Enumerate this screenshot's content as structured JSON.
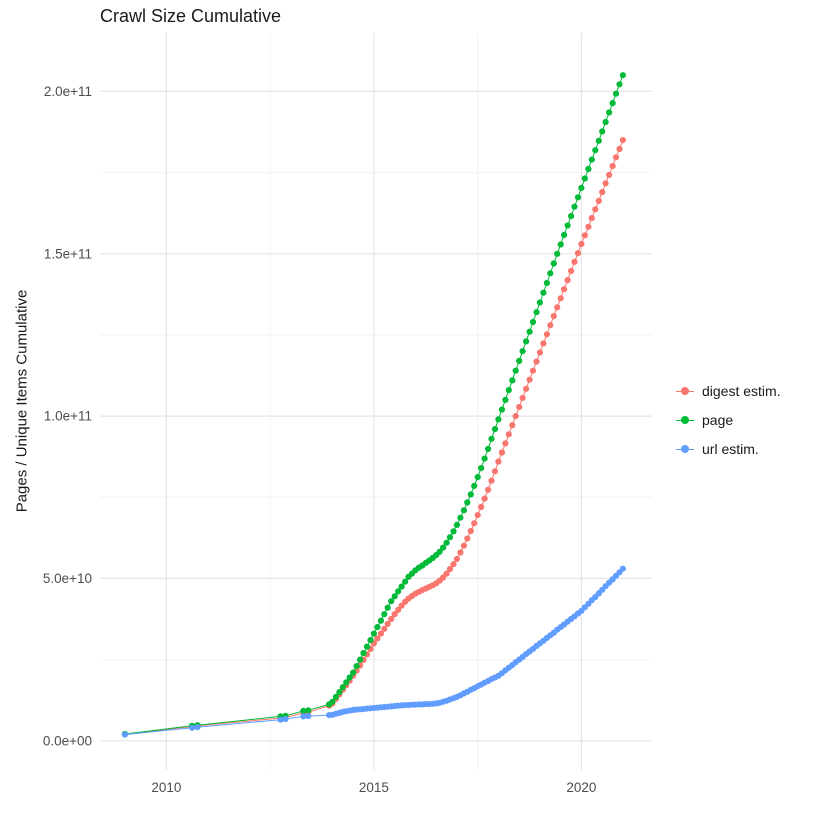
{
  "chart_data": {
    "type": "scatter",
    "title": "Crawl Size Cumulative",
    "xlabel": "",
    "ylabel": "Pages / Unique Items Cumulative",
    "xlim": [
      2008.4,
      2021.7
    ],
    "ylim_e9": [
      -9,
      218
    ],
    "grid": true,
    "legend_position": "right",
    "x_ticks": {
      "values": [
        2010,
        2015,
        2020
      ],
      "labels": [
        "2010",
        "2015",
        "2020"
      ]
    },
    "y_ticks": {
      "values_e9": [
        0,
        50,
        100,
        150,
        200
      ],
      "labels": [
        "0.0e+00",
        "5.0e+10",
        "1.0e+11",
        "1.5e+11",
        "2.0e+11"
      ]
    },
    "x_minor_ticks": [
      2012.5,
      2017.5
    ],
    "y_minor_ticks_e9": [
      25,
      75,
      125,
      175
    ],
    "y_unit": "items (values stored in units of 1e9)",
    "x": [
      2009.0,
      2010.62,
      2010.75,
      2012.75,
      2012.87,
      2013.3,
      2013.42,
      2013.92,
      2014.0,
      2014.083,
      2014.167,
      2014.25,
      2014.333,
      2014.417,
      2014.5,
      2014.583,
      2014.667,
      2014.75,
      2014.833,
      2014.917,
      2015.0,
      2015.083,
      2015.167,
      2015.25,
      2015.333,
      2015.417,
      2015.5,
      2015.583,
      2015.667,
      2015.75,
      2015.833,
      2015.917,
      2016.0,
      2016.083,
      2016.167,
      2016.25,
      2016.333,
      2016.417,
      2016.5,
      2016.583,
      2016.667,
      2016.75,
      2016.833,
      2016.917,
      2017.0,
      2017.083,
      2017.167,
      2017.25,
      2017.333,
      2017.417,
      2017.5,
      2017.583,
      2017.667,
      2017.75,
      2017.833,
      2017.917,
      2018.0,
      2018.083,
      2018.167,
      2018.25,
      2018.333,
      2018.417,
      2018.5,
      2018.583,
      2018.667,
      2018.75,
      2018.833,
      2018.917,
      2019.0,
      2019.083,
      2019.167,
      2019.25,
      2019.333,
      2019.417,
      2019.5,
      2019.583,
      2019.667,
      2019.75,
      2019.833,
      2019.917,
      2020.0,
      2020.083,
      2020.167,
      2020.25,
      2020.333,
      2020.417,
      2020.5,
      2020.583,
      2020.667,
      2020.75,
      2020.833,
      2020.917,
      2021.0
    ],
    "series": [
      {
        "name": "digest estim.",
        "color": "#F8766D",
        "values_e9": [
          2.0,
          4.4,
          4.6,
          7.0,
          7.2,
          8.6,
          8.8,
          10.8,
          11.5,
          12.9,
          14.3,
          15.7,
          17.1,
          18.5,
          20.0,
          21.6,
          23.2,
          24.9,
          26.6,
          28.3,
          30.0,
          31.5,
          33.0,
          34.5,
          36.0,
          37.5,
          39.0,
          40.3,
          41.6,
          42.8,
          43.8,
          44.6,
          45.3,
          45.9,
          46.4,
          46.9,
          47.4,
          47.9,
          48.5,
          49.3,
          50.3,
          51.5,
          52.9,
          54.4,
          56.0,
          58.0,
          60.1,
          62.3,
          64.6,
          67.0,
          69.5,
          72.0,
          74.6,
          77.3,
          80.1,
          83.0,
          86.0,
          88.8,
          91.6,
          94.4,
          97.2,
          100.0,
          102.8,
          105.6,
          108.4,
          111.2,
          114.0,
          116.8,
          119.6,
          122.4,
          125.2,
          128.0,
          130.8,
          133.5,
          136.3,
          139.1,
          141.9,
          144.7,
          147.5,
          150.2,
          153.0,
          155.7,
          158.3,
          161.0,
          163.7,
          166.3,
          169.0,
          171.7,
          174.3,
          177.0,
          179.7,
          182.3,
          185.0
        ]
      },
      {
        "name": "page",
        "color": "#00BA38",
        "values_e9": [
          2.1,
          4.6,
          4.8,
          7.5,
          7.7,
          9.2,
          9.4,
          11.2,
          12.0,
          13.5,
          15.0,
          16.5,
          18.0,
          19.5,
          21.0,
          23.0,
          25.0,
          27.0,
          29.0,
          31.0,
          33.0,
          35.0,
          37.0,
          39.0,
          41.0,
          43.0,
          44.5,
          46.0,
          47.5,
          49.0,
          50.5,
          51.5,
          52.5,
          53.3,
          54.0,
          54.8,
          55.5,
          56.3,
          57.2,
          58.2,
          59.5,
          61.0,
          62.7,
          64.5,
          66.5,
          68.7,
          71.0,
          73.4,
          75.9,
          78.5,
          81.2,
          84.0,
          86.9,
          89.9,
          93.0,
          96.0,
          99.0,
          102.0,
          105.0,
          108.0,
          111.0,
          114.0,
          117.0,
          120.0,
          123.0,
          126.0,
          129.0,
          132.0,
          135.0,
          138.0,
          141.0,
          144.0,
          147.0,
          150.0,
          152.9,
          155.8,
          158.7,
          161.6,
          164.5,
          167.4,
          170.3,
          173.2,
          176.1,
          179.0,
          181.9,
          184.8,
          187.7,
          190.6,
          193.5,
          196.4,
          199.3,
          202.2,
          205.0
        ]
      },
      {
        "name": "url estim.",
        "color": "#619CFF",
        "values_e9": [
          1.9,
          4.0,
          4.2,
          6.5,
          6.7,
          7.5,
          7.6,
          7.9,
          8.0,
          8.3,
          8.6,
          8.9,
          9.1,
          9.3,
          9.5,
          9.6,
          9.7,
          9.8,
          9.9,
          10.0,
          10.1,
          10.2,
          10.3,
          10.4,
          10.5,
          10.6,
          10.7,
          10.8,
          10.9,
          11.0,
          11.0,
          11.1,
          11.1,
          11.2,
          11.2,
          11.3,
          11.3,
          11.4,
          11.5,
          11.7,
          12.0,
          12.3,
          12.7,
          13.1,
          13.5,
          14.0,
          14.6,
          15.1,
          15.7,
          16.2,
          16.8,
          17.3,
          17.9,
          18.4,
          19.0,
          19.5,
          20.0,
          20.8,
          21.7,
          22.5,
          23.3,
          24.2,
          25.0,
          25.8,
          26.7,
          27.5,
          28.3,
          29.2,
          30.0,
          30.8,
          31.7,
          32.5,
          33.3,
          34.2,
          35.0,
          35.8,
          36.7,
          37.5,
          38.3,
          39.2,
          40.0,
          41.1,
          42.2,
          43.3,
          44.3,
          45.4,
          46.5,
          47.6,
          48.7,
          49.7,
          50.8,
          51.9,
          53.0
        ]
      }
    ]
  },
  "style": {
    "grid_major_color": "#E5E5E5",
    "grid_minor_color": "#F2F2F2",
    "tick_label_color": "#4D4D4D",
    "background_color": "#FFFFFF"
  }
}
